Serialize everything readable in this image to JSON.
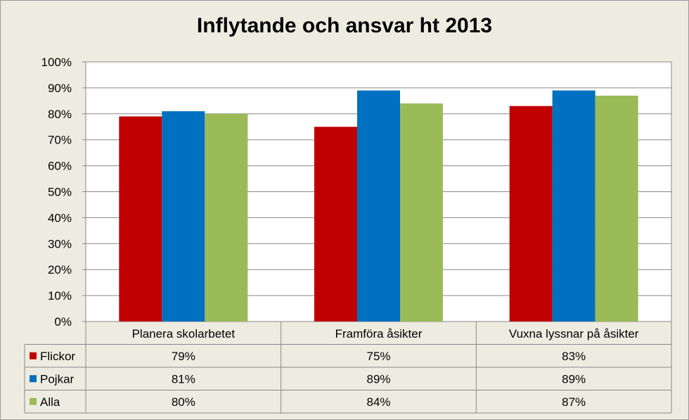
{
  "chart_data": {
    "type": "bar",
    "title": "Inflytande och ansvar ht 2013",
    "categories": [
      "Planera skolarbetet",
      "Framföra åsikter",
      "Vuxna lyssnar på åsikter"
    ],
    "series": [
      {
        "name": "Flickor",
        "values": [
          79,
          75,
          83
        ],
        "labels": [
          "79%",
          "75%",
          "83%"
        ],
        "color": "#c00000"
      },
      {
        "name": "Pojkar",
        "values": [
          81,
          89,
          89
        ],
        "labels": [
          "81%",
          "89%",
          "89%"
        ],
        "color": "#0070c0"
      },
      {
        "name": "Alla",
        "values": [
          80,
          84,
          87
        ],
        "labels": [
          "80%",
          "84%",
          "87%"
        ],
        "color": "#9bbb59"
      }
    ],
    "ylim": [
      0,
      100
    ],
    "yticks": [
      "0%",
      "10%",
      "20%",
      "30%",
      "40%",
      "50%",
      "60%",
      "70%",
      "80%",
      "90%",
      "100%"
    ],
    "grid": true,
    "legend": "data-table-left"
  }
}
